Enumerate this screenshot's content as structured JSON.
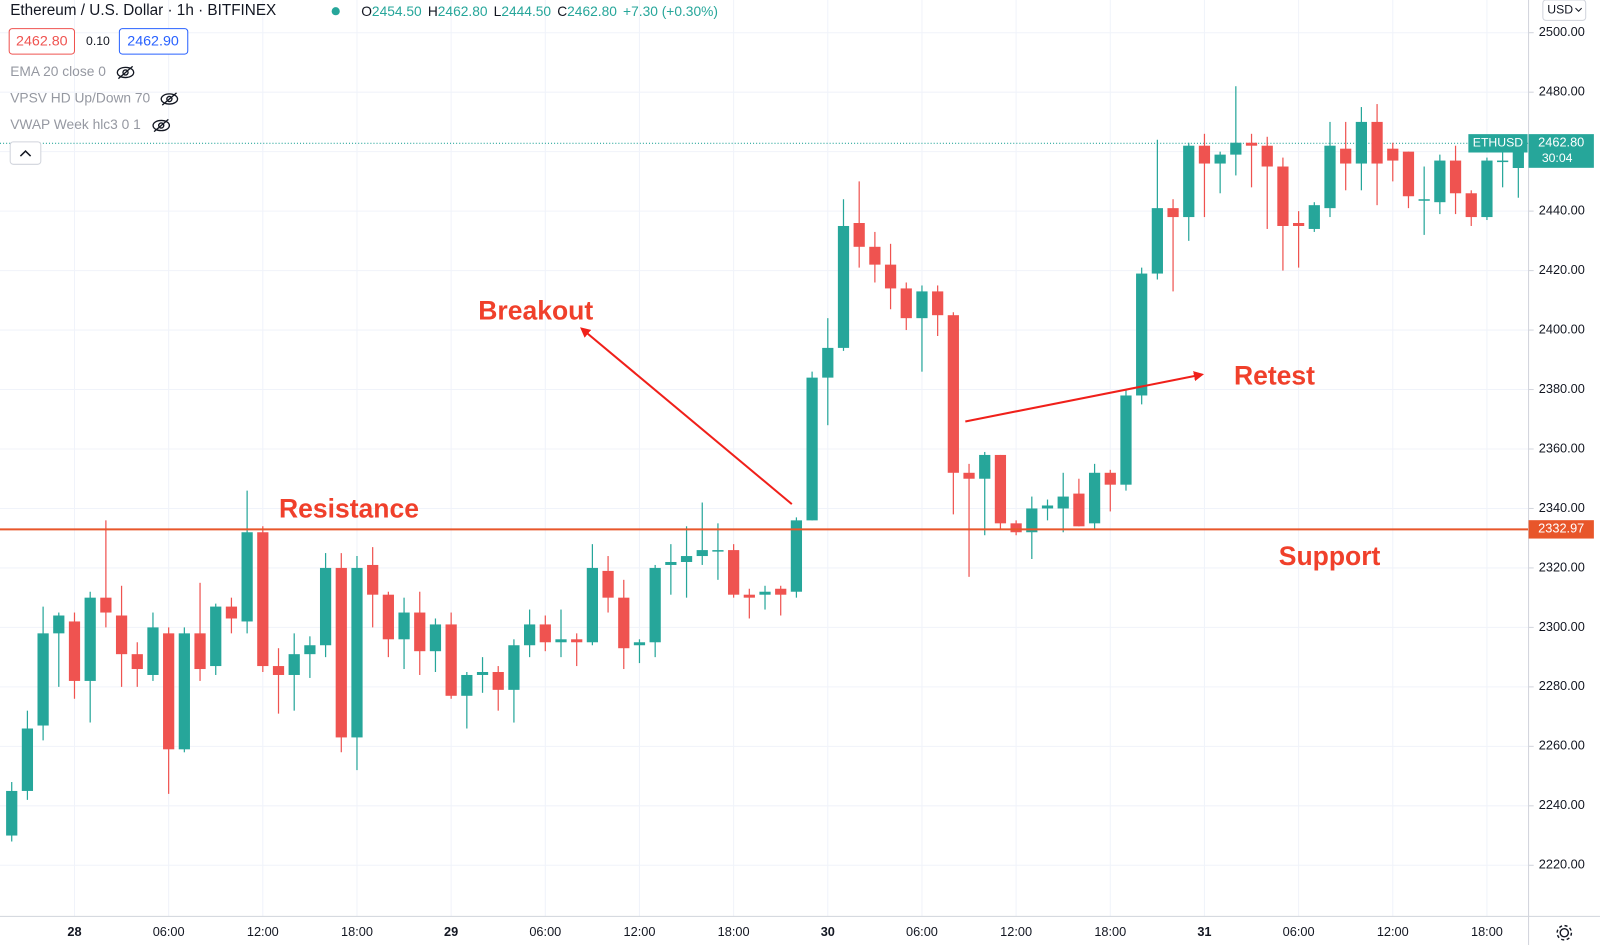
{
  "header": {
    "title": "Ethereum / U.S. Dollar · 1h · BITFINEX",
    "ohlc": [
      {
        "label": "O",
        "value": "2454.50"
      },
      {
        "label": "H",
        "value": "2462.80"
      },
      {
        "label": "L",
        "value": "2444.50"
      },
      {
        "label": "C",
        "value": "2462.80"
      }
    ],
    "change": "+7.30 (+0.30%)",
    "bid": "2462.80",
    "spread": "0.10",
    "ask": "2462.90",
    "indicators": [
      "EMA 20 close 0",
      "VPSV HD Up/Down 70",
      "VWAP Week hlc3 0 1"
    ],
    "currency": "USD"
  },
  "chart_data": {
    "type": "candlestick",
    "categories": [
      null,
      null,
      null,
      null,
      "28",
      null,
      null,
      null,
      null,
      null,
      "06:00",
      null,
      null,
      null,
      null,
      null,
      "12:00",
      null,
      null,
      null,
      null,
      null,
      "18:00",
      null,
      null,
      null,
      null,
      null,
      "29",
      null,
      null,
      null,
      null,
      null,
      "06:00",
      null,
      null,
      null,
      null,
      null,
      "12:00",
      null,
      null,
      null,
      null,
      null,
      "18:00",
      null,
      null,
      null,
      null,
      null,
      "30",
      null,
      null,
      null,
      null,
      null,
      "06:00",
      null,
      null,
      null,
      null,
      null,
      "12:00",
      null,
      null,
      null,
      null,
      null,
      "18:00",
      null,
      null,
      null,
      null,
      null,
      "31",
      null,
      null,
      null,
      null,
      null,
      "06:00",
      null,
      null,
      null,
      null,
      null,
      "12:00",
      null,
      null,
      null,
      null,
      null,
      "18:00",
      null,
      null
    ],
    "open": [
      2230,
      2245,
      2267,
      2298,
      2302,
      2282,
      2310,
      2304,
      2291,
      2284,
      2298,
      2259,
      2298,
      2287,
      2307,
      2302,
      2332,
      2287,
      2284,
      2291,
      2294,
      2320,
      2263,
      2321,
      2311,
      2296,
      2305,
      2292,
      2301,
      2277,
      2284,
      2285,
      2279,
      2294,
      2301,
      2295,
      2296,
      2295,
      2319,
      2310,
      2294,
      2295,
      2321,
      2322,
      2324,
      2326,
      2326,
      2311,
      2311,
      2313,
      2312,
      2336,
      2384,
      2394,
      2436,
      2428,
      2422,
      2414,
      2404,
      2413,
      2405,
      2352,
      2350,
      2358,
      2335,
      2332,
      2340,
      2340,
      2345,
      2335,
      2352,
      2348,
      2378,
      2419,
      2441,
      2438,
      2462,
      2456,
      2459,
      2463,
      2462,
      2455,
      2436,
      2434,
      2441,
      2461,
      2456,
      2470,
      2461,
      2460,
      2444,
      2443,
      2457,
      2446,
      2438,
      2457,
      2454.5
    ],
    "high": [
      2248,
      2272,
      2307,
      2305,
      2305,
      2312,
      2336,
      2314,
      2295,
      2305,
      2300,
      2300,
      2315,
      2308,
      2310,
      2346,
      2334,
      2293,
      2298,
      2297,
      2325,
      2325,
      2324,
      2327,
      2312,
      2310,
      2312,
      2303,
      2305,
      2285,
      2290,
      2287,
      2296,
      2306,
      2304,
      2306,
      2298,
      2328,
      2324,
      2316,
      2296,
      2321,
      2328,
      2334,
      2342,
      2335,
      2328,
      2313,
      2314,
      2314,
      2337,
      2386,
      2404,
      2444,
      2450,
      2433,
      2429,
      2416,
      2415,
      2415,
      2406,
      2355,
      2359,
      2358,
      2336,
      2344,
      2343,
      2352,
      2350,
      2355,
      2353,
      2380,
      2421,
      2464,
      2444,
      2463,
      2466,
      2460,
      2482,
      2466,
      2465,
      2458,
      2440,
      2443,
      2470,
      2470,
      2475,
      2476,
      2463,
      2460,
      2455,
      2459,
      2462,
      2447,
      2458,
      2462,
      2462.8
    ],
    "low": [
      2228,
      2242,
      2262,
      2280,
      2276,
      2268,
      2300,
      2280,
      2280,
      2282,
      2244,
      2258,
      2282,
      2284,
      2298,
      2298,
      2285,
      2271,
      2272,
      2283,
      2290,
      2258,
      2252,
      2300,
      2290,
      2286,
      2284,
      2285,
      2276,
      2266,
      2278,
      2272,
      2268,
      2290,
      2292,
      2290,
      2287,
      2294,
      2305,
      2286,
      2288,
      2290,
      2311,
      2310,
      2321,
      2316,
      2310,
      2303,
      2306,
      2304,
      2310,
      2336,
      2368,
      2393,
      2421,
      2416,
      2407,
      2400,
      2386,
      2398,
      2338,
      2317,
      2331,
      2333,
      2331,
      2323,
      2336,
      2332,
      2334,
      2333,
      2339,
      2346,
      2375,
      2417,
      2413,
      2430,
      2438,
      2446,
      2452,
      2448,
      2434,
      2420,
      2421,
      2433,
      2438,
      2447,
      2447,
      2442,
      2450,
      2441,
      2432,
      2439,
      2439,
      2435,
      2437,
      2448,
      2444.5
    ],
    "close": [
      2245,
      2266,
      2298,
      2304,
      2282,
      2310,
      2305,
      2291,
      2286,
      2300,
      2259,
      2298,
      2286,
      2307,
      2303,
      2332,
      2287,
      2284,
      2291,
      2294,
      2320,
      2263,
      2320,
      2311,
      2296,
      2305,
      2292,
      2301,
      2277,
      2284,
      2285,
      2279,
      2294,
      2301,
      2295,
      2296,
      2295,
      2320,
      2310,
      2293,
      2295,
      2320,
      2322,
      2324,
      2326,
      2326,
      2311,
      2310,
      2312,
      2311,
      2336,
      2384,
      2394,
      2435,
      2428,
      2422,
      2414,
      2404,
      2413,
      2405,
      2352,
      2350,
      2358,
      2335,
      2332,
      2340,
      2341,
      2344,
      2334,
      2352,
      2348,
      2378,
      2419,
      2441,
      2438,
      2462,
      2456,
      2459,
      2463,
      2462,
      2455,
      2435,
      2435,
      2442,
      2462,
      2456,
      2470,
      2456,
      2457,
      2445,
      2444,
      2457,
      2446,
      2438,
      2457,
      2457,
      2462.8
    ],
    "up_color": "#26a69a",
    "down_color": "#ef5350",
    "ylim": [
      2202.8,
      2511
    ],
    "yticks": [
      {
        "value": 2220,
        "label": "2220.00"
      },
      {
        "value": 2240,
        "label": "2240.00"
      },
      {
        "value": 2260,
        "label": "2260.00"
      },
      {
        "value": 2280,
        "label": "2280.00"
      },
      {
        "value": 2300,
        "label": "2300.00"
      },
      {
        "value": 2320,
        "label": "2320.00"
      },
      {
        "value": 2340,
        "label": "2340.00"
      },
      {
        "value": 2360,
        "label": "2360.00"
      },
      {
        "value": 2380,
        "label": "2380.00"
      },
      {
        "value": 2400,
        "label": "2400.00"
      },
      {
        "value": 2420,
        "label": "2420.00"
      },
      {
        "value": 2440,
        "label": "2440.00"
      },
      {
        "value": 2460,
        "label": "2460.00"
      },
      {
        "value": 2480,
        "label": "2480.00"
      },
      {
        "value": 2500,
        "label": "2500.00"
      }
    ],
    "grid": true,
    "level_line": 2332.97,
    "level_color": "#e8562a",
    "symbol": "ETHUSD",
    "last_price": {
      "value": 2462.8,
      "label": "2462.80"
    },
    "countdown": "30:04",
    "annotations": [
      "Breakout",
      "Retest",
      "Resistance",
      "Support"
    ]
  }
}
